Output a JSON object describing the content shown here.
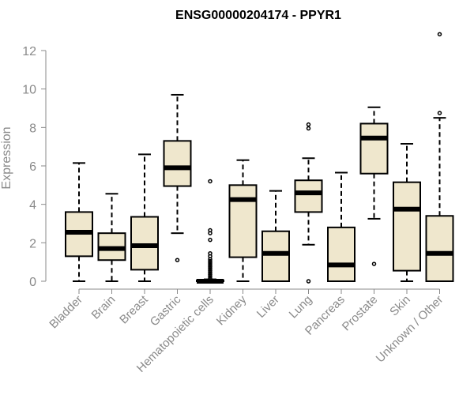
{
  "chart_data": {
    "type": "boxplot",
    "title": "ENSG00000204174 - PPYR1",
    "xlabel": "",
    "ylabel": "Expression",
    "ylim": [
      0,
      12.5
    ],
    "yticks": [
      0,
      2,
      4,
      6,
      8,
      10,
      12
    ],
    "grid": false,
    "box_color": "#efe7cd",
    "categories": [
      "Bladder",
      "Brain",
      "Breast",
      "Gastric",
      "Hematopoietic cells",
      "Kidney",
      "Liver",
      "Lung",
      "Pancreas",
      "Prostate",
      "Skin",
      "Unknown / Other"
    ],
    "boxes": [
      {
        "whisker_low": 0.0,
        "q1": 1.3,
        "median": 2.55,
        "q3": 3.6,
        "whisker_high": 6.15,
        "outliers": []
      },
      {
        "whisker_low": 0.0,
        "q1": 1.1,
        "median": 1.7,
        "q3": 2.5,
        "whisker_high": 4.55,
        "outliers": []
      },
      {
        "whisker_low": 0.0,
        "q1": 0.6,
        "median": 1.85,
        "q3": 3.35,
        "whisker_high": 6.6,
        "outliers": []
      },
      {
        "whisker_low": 2.5,
        "q1": 4.95,
        "median": 5.9,
        "q3": 7.3,
        "whisker_high": 9.7,
        "outliers": [
          1.1
        ]
      },
      {
        "whisker_low": 0.0,
        "q1": 0.0,
        "median": 0.0,
        "q3": 0.05,
        "whisker_high": 0.1,
        "outliers": [
          0.15,
          0.25,
          0.35,
          0.45,
          0.55,
          0.65,
          0.75,
          0.85,
          0.95,
          1.05,
          1.15,
          1.3,
          1.45,
          2.15,
          2.5,
          2.65,
          5.2
        ]
      },
      {
        "whisker_low": 0.0,
        "q1": 1.25,
        "median": 4.25,
        "q3": 5.0,
        "whisker_high": 6.3,
        "outliers": []
      },
      {
        "whisker_low": 0.0,
        "q1": 0.0,
        "median": 1.45,
        "q3": 2.6,
        "whisker_high": 4.7,
        "outliers": []
      },
      {
        "whisker_low": 1.9,
        "q1": 3.6,
        "median": 4.6,
        "q3": 5.25,
        "whisker_high": 6.4,
        "outliers": [
          0.0,
          7.95,
          8.15
        ]
      },
      {
        "whisker_low": 0.0,
        "q1": 0.0,
        "median": 0.85,
        "q3": 2.8,
        "whisker_high": 5.65,
        "outliers": []
      },
      {
        "whisker_low": 3.25,
        "q1": 5.6,
        "median": 7.45,
        "q3": 8.2,
        "whisker_high": 9.05,
        "outliers": [
          0.9
        ]
      },
      {
        "whisker_low": 0.0,
        "q1": 0.55,
        "median": 3.75,
        "q3": 5.15,
        "whisker_high": 7.15,
        "outliers": []
      },
      {
        "whisker_low": 0.0,
        "q1": 0.0,
        "median": 1.45,
        "q3": 3.4,
        "whisker_high": 8.5,
        "outliers": [
          8.75,
          12.85
        ]
      }
    ]
  }
}
